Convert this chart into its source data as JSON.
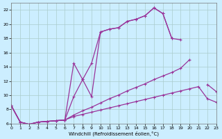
{
  "xlabel": "Windchill (Refroidissement éolien,°C)",
  "bg_color": "#cceeff",
  "grid_color": "#aacccc",
  "line_color": "#993399",
  "xlim": [
    0,
    23
  ],
  "ylim": [
    6,
    23
  ],
  "xticks": [
    0,
    1,
    2,
    3,
    4,
    5,
    6,
    7,
    8,
    9,
    10,
    11,
    12,
    13,
    14,
    15,
    16,
    17,
    18,
    19,
    20,
    21,
    22,
    23
  ],
  "yticks": [
    6,
    8,
    10,
    12,
    14,
    16,
    18,
    20,
    22
  ],
  "curve1_x": [
    0,
    1,
    2,
    3,
    4,
    5,
    6,
    7,
    8,
    9,
    10,
    11,
    12,
    13,
    14,
    15,
    16,
    17,
    18,
    19,
    20,
    21
  ],
  "curve1_y": [
    8.5,
    6.2,
    5.9,
    6.2,
    6.3,
    6.4,
    6.5,
    9.8,
    12.2,
    14.5,
    18.9,
    19.3,
    19.5,
    20.4,
    20.7,
    21.2,
    22.3,
    21.5,
    18.0,
    17.8,
    null,
    null
  ],
  "curve2_x": [
    0,
    1,
    2,
    3,
    4,
    5,
    6,
    7,
    8,
    9,
    10,
    11,
    12,
    13,
    14,
    15,
    16,
    17,
    18
  ],
  "curve2_y": [
    8.5,
    6.2,
    5.9,
    6.2,
    6.3,
    6.4,
    6.5,
    14.5,
    12.2,
    9.8,
    18.9,
    19.3,
    19.5,
    20.4,
    20.7,
    21.2,
    22.3,
    21.5,
    18.0
  ],
  "curve3_x": [
    0,
    1,
    2,
    3,
    4,
    5,
    6,
    7,
    8,
    9,
    10,
    11,
    12,
    13,
    14,
    15,
    16,
    17,
    18,
    19,
    20,
    21,
    22,
    23
  ],
  "curve3_y": [
    8.5,
    6.2,
    5.9,
    6.2,
    6.3,
    6.4,
    6.5,
    7.2,
    7.8,
    8.3,
    8.9,
    9.5,
    10.0,
    10.6,
    11.1,
    11.6,
    12.2,
    12.7,
    13.2,
    13.8,
    15.0,
    null,
    11.5,
    10.5
  ],
  "curve4_x": [
    0,
    1,
    2,
    3,
    4,
    5,
    6,
    7,
    8,
    9,
    10,
    11,
    12,
    13,
    14,
    15,
    16,
    17,
    18,
    19,
    20,
    21,
    22,
    23
  ],
  "curve4_y": [
    8.5,
    6.2,
    5.9,
    6.2,
    6.3,
    6.4,
    6.5,
    7.0,
    7.3,
    7.6,
    7.9,
    8.2,
    8.5,
    8.8,
    9.1,
    9.4,
    9.7,
    10.0,
    10.3,
    10.6,
    10.9,
    11.2,
    9.5,
    9.0
  ]
}
